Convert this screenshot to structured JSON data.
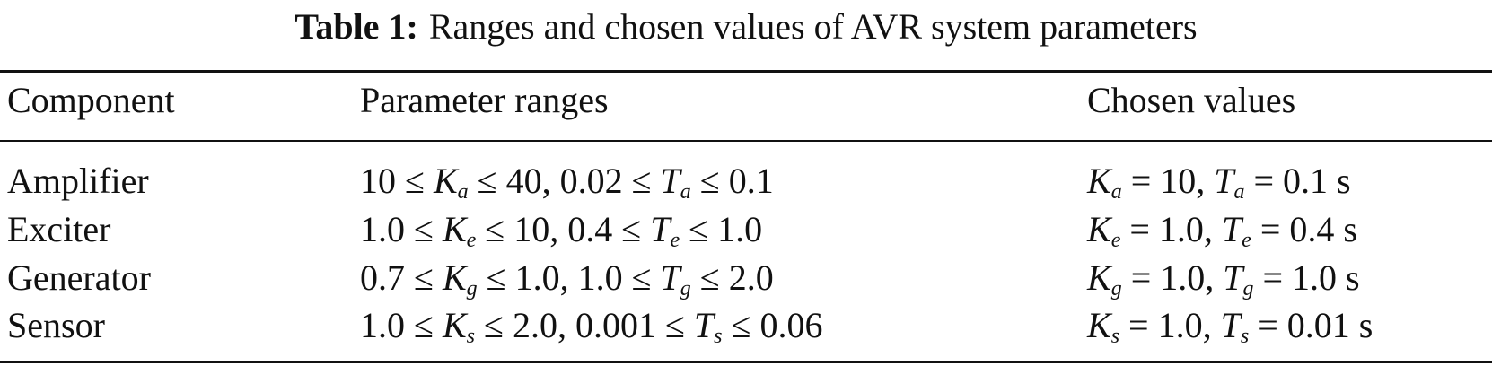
{
  "table": {
    "caption": {
      "label": "Table 1:",
      "text": "Ranges and chosen values of AVR system parameters"
    },
    "header": [
      "Component",
      "Parameter ranges",
      "Chosen values"
    ],
    "rows": [
      [
        "Amplifier",
        [
          "10 ≤ ",
          {
            "var": "K",
            "sub": "a"
          },
          " ≤ 40, 0.02 ≤ ",
          {
            "var": "T",
            "sub": "a"
          },
          " ≤ 0.1"
        ],
        [
          {
            "var": "K",
            "sub": "a"
          },
          " = 10, ",
          {
            "var": "T",
            "sub": "a"
          },
          " = 0.1 s"
        ]
      ],
      [
        "Exciter",
        [
          "1.0 ≤ ",
          {
            "var": "K",
            "sub": "e"
          },
          " ≤ 10, 0.4 ≤ ",
          {
            "var": "T",
            "sub": "e"
          },
          " ≤ 1.0"
        ],
        [
          {
            "var": "K",
            "sub": "e"
          },
          " = 1.0, ",
          {
            "var": "T",
            "sub": "e"
          },
          " = 0.4 s"
        ]
      ],
      [
        "Generator",
        [
          "0.7 ≤ ",
          {
            "var": "K",
            "sub": "g"
          },
          " ≤ 1.0, 1.0 ≤ ",
          {
            "var": "T",
            "sub": "g"
          },
          " ≤ 2.0"
        ],
        [
          {
            "var": "K",
            "sub": "g"
          },
          " = 1.0, ",
          {
            "var": "T",
            "sub": "g"
          },
          " = 1.0 s"
        ]
      ],
      [
        "Sensor",
        [
          "1.0 ≤ ",
          {
            "var": "K",
            "sub": "s"
          },
          " ≤ 2.0, 0.001 ≤ ",
          {
            "var": "T",
            "sub": "s"
          },
          " ≤ 0.06"
        ],
        [
          {
            "var": "K",
            "sub": "s"
          },
          " = 1.0, ",
          {
            "var": "T",
            "sub": "s"
          },
          " = 0.01 s"
        ]
      ]
    ]
  }
}
